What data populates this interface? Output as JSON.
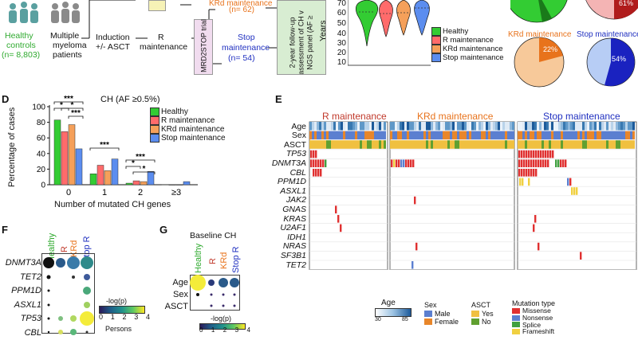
{
  "colors": {
    "healthy": "#33cc33",
    "r": "#ff6b6b",
    "krd": "#f5a05a",
    "stop": "#5b8def",
    "r_text": "#c0392b",
    "krd_text": "#e8731c",
    "stop_text": "#2030c0",
    "missense": "#e03030",
    "nonsense": "#5b7fd0",
    "splice": "#40a040",
    "frameshift": "#f0d040"
  },
  "panelA": {
    "healthy_label_1": "Healthy",
    "healthy_label_2": "controls",
    "healthy_n": "(n= 8,803)",
    "mm_label_1": "Multiple",
    "mm_label_2": "myeloma",
    "mm_label_3": "patients",
    "induction_1": "Induction",
    "induction_2": "+/- ASCT",
    "r_1": "R",
    "r_2": "maintenance",
    "krd_n": "(n= 62)",
    "krd_top": "KRd maintenance",
    "trial": "MRD2STOP trial",
    "stop_1": "Stop",
    "stop_2": "maintenance",
    "stop_n": "(n= 54)",
    "followup_1": "2-year follow-up",
    "followup_2": "assessment of CH v",
    "followup_3": "NGS panel (AF ≥"
  },
  "panelB": {
    "ylabel": "Years",
    "yticks": [
      "70",
      "60",
      "50",
      "40",
      "30",
      "20",
      "10"
    ],
    "legend": [
      "Healthy",
      "R maintenance",
      "KRd maintenance",
      "Stop maintenance"
    ]
  },
  "panelC": {
    "r_pct": "61%",
    "krd_label": "KRd maintenance",
    "krd_pct": "22%",
    "stop_label": "Stop maintenance",
    "stop_pct": "54%"
  },
  "panelD": {
    "letter": "D",
    "title": "CH (AF ≥0.5%)",
    "ylabel": "Percentage of cases",
    "xlabel": "Number of mutated CH genes",
    "legend": [
      "Healthy",
      "R maintenance",
      "KRd maintenance",
      "Stop maintenance"
    ],
    "sig_labels": [
      "***",
      "*",
      "*",
      "***",
      "***",
      "***",
      "*",
      "*"
    ]
  },
  "chart_data": {
    "type": "bar",
    "title": "CH (AF ≥0.5%)",
    "xlabel": "Number of mutated CH genes",
    "ylabel": "Percentage of cases",
    "categories": [
      "0",
      "1",
      "2",
      "≥3"
    ],
    "ylim": [
      0,
      100
    ],
    "yticks": [
      "0",
      "20",
      "40",
      "60",
      "80",
      "100"
    ],
    "series": [
      {
        "name": "Healthy",
        "values": [
          83,
          14,
          2,
          0.3
        ]
      },
      {
        "name": "R maintenance",
        "values": [
          68,
          25,
          5,
          0
        ]
      },
      {
        "name": "KRd maintenance",
        "values": [
          77,
          18,
          4,
          0
        ]
      },
      {
        "name": "Stop maintenance",
        "values": [
          46,
          33,
          17,
          4
        ]
      }
    ]
  },
  "panelE": {
    "letter": "E",
    "groups": [
      "R maintenance",
      "KRd maintenance",
      "Stop maintenance"
    ],
    "row_labels": [
      "Age",
      "Sex",
      "ASCT",
      "TP53",
      "DNMT3A",
      "CBL",
      "PPM1D",
      "ASXL1",
      "JAK2",
      "GNAS",
      "KRAS",
      "U2AF1",
      "IDH1",
      "NRAS",
      "SF3B1",
      "TET2"
    ],
    "age_title": "Age",
    "age_min": "30",
    "age_max": "85",
    "sex_title": "Sex",
    "sex_items": [
      "Male",
      "Female"
    ],
    "asct_title": "ASCT",
    "asct_items": [
      "Yes",
      "No"
    ],
    "mut_title": "Mutation type",
    "mut_items": [
      "Missense",
      "Nonsense",
      "Splice",
      "Frameshift"
    ]
  },
  "panelF": {
    "letter": "F",
    "cols": [
      "Healthy",
      "R",
      "KRd",
      "Stop R"
    ],
    "rows": [
      "DNMT3A",
      "TET2",
      "PPM1D",
      "ASXL1",
      "TP53",
      "CBL"
    ],
    "legend_title": "-log(p)",
    "legend_ticks": [
      "0",
      "1",
      "2",
      "3",
      "4"
    ],
    "persons": "Persons"
  },
  "panelG": {
    "letter": "G",
    "title": "Baseline CH",
    "cols": [
      "Healthy",
      "R",
      "KRd",
      "Stop R"
    ],
    "rows": [
      "Age",
      "Sex",
      "ASCT"
    ],
    "legend_title": "-log(p)",
    "legend_ticks": [
      "0",
      "1",
      "2",
      "3",
      "4"
    ]
  }
}
